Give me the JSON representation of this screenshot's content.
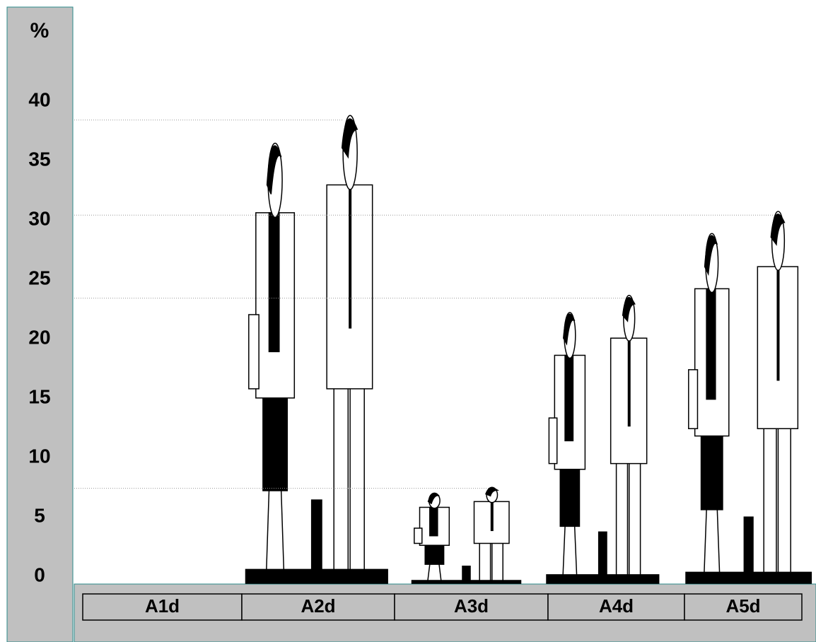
{
  "chart_data": {
    "type": "pictograph",
    "y_label": "%",
    "categories": [
      "A1d",
      "A2d",
      "A3d",
      "A4d",
      "A5d"
    ],
    "values": [
      0,
      39,
      8,
      24,
      31
    ],
    "ylim": [
      0,
      40
    ],
    "yticks": [
      0,
      5,
      10,
      15,
      20,
      25,
      30,
      35,
      40
    ]
  }
}
